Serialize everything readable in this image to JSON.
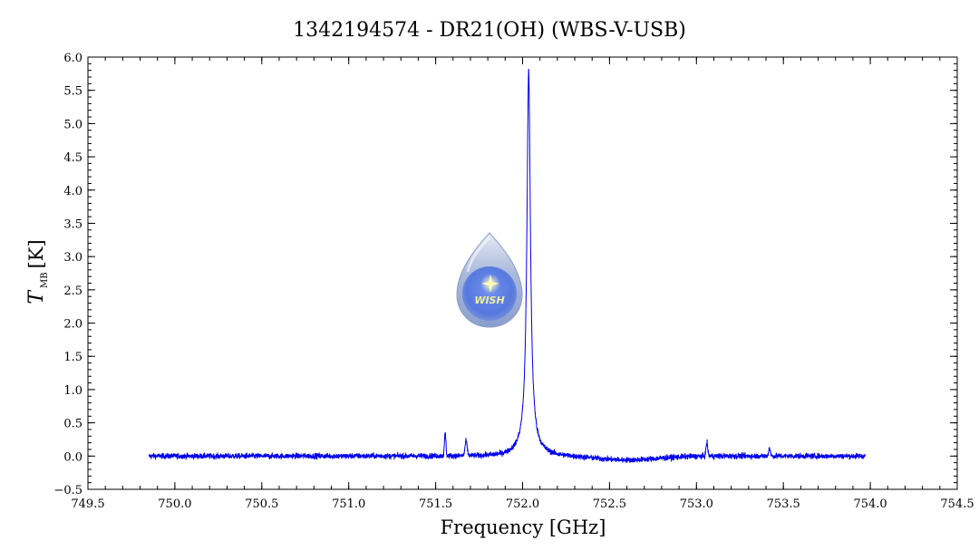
{
  "chart_data": {
    "type": "line",
    "title": "1342194574 - DR21(OH) (WBS-V-USB)",
    "xlabel": "Frequency [GHz]",
    "ylabel_main": "T",
    "ylabel_sub": "MB",
    "ylabel_unit": "[K]",
    "xlim": [
      749.5,
      754.5
    ],
    "ylim": [
      -0.5,
      6.0
    ],
    "x_ticks": [
      "749.5",
      "750.0",
      "750.5",
      "751.0",
      "751.5",
      "752.0",
      "752.5",
      "753.0",
      "753.5",
      "754.0",
      "754.5"
    ],
    "y_ticks": [
      "−0.5",
      "0.0",
      "0.5",
      "1.0",
      "1.5",
      "2.0",
      "2.5",
      "3.0",
      "3.5",
      "4.0",
      "4.5",
      "5.0",
      "5.5",
      "6.0"
    ],
    "grid": false,
    "line_color": "#0000ee",
    "series": [
      {
        "x_range": [
          749.85,
          753.97
        ],
        "baseline": 0.0,
        "noise_rms": 0.03,
        "features": [
          {
            "center": 752.035,
            "peak": 5.8
          },
          {
            "center": 751.555,
            "peak": 0.35
          },
          {
            "center": 751.675,
            "peak": 0.22
          },
          {
            "center": 753.06,
            "peak": 0.2
          },
          {
            "center": 753.42,
            "peak": 0.12
          }
        ]
      }
    ],
    "logo": {
      "name": "wish-droplet-logo",
      "text": "WISH"
    }
  }
}
